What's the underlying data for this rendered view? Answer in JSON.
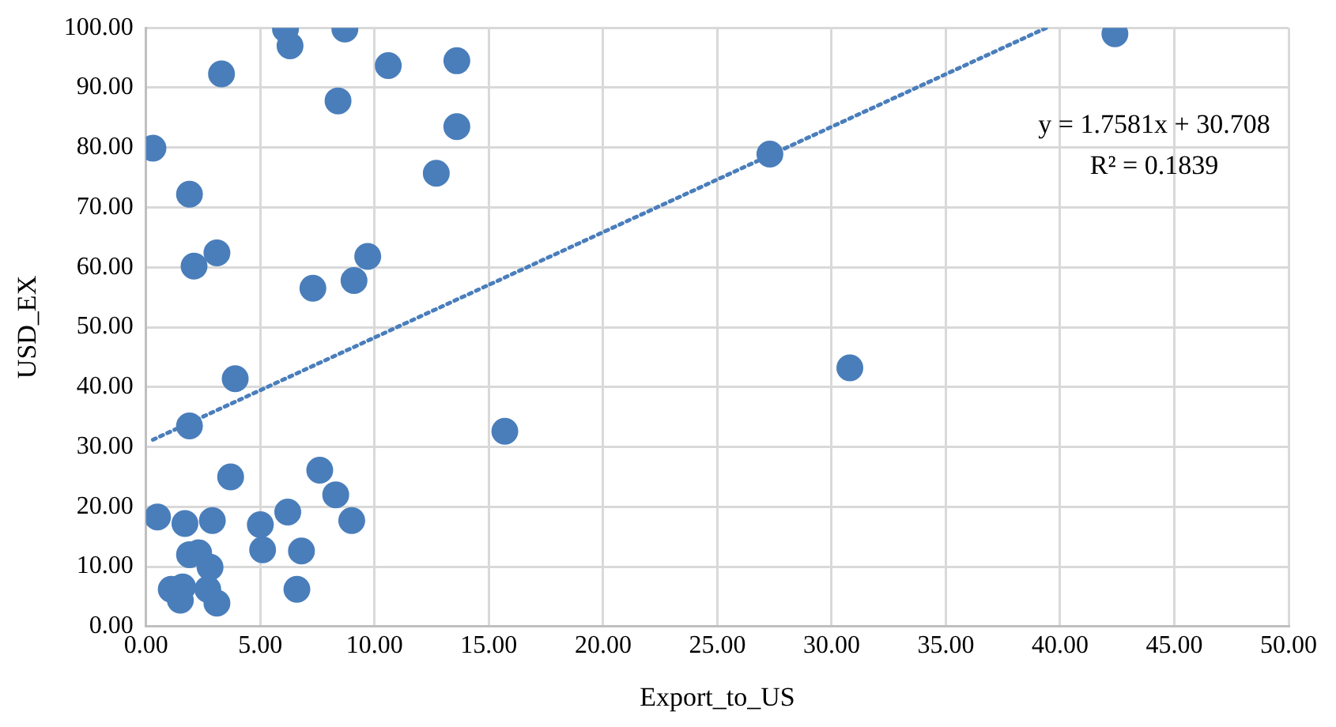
{
  "chart_data": {
    "type": "scatter",
    "xlabel": "Export_to_US",
    "ylabel": "USD_EX",
    "xlim": [
      0,
      50
    ],
    "ylim": [
      0,
      100
    ],
    "xticks": [
      {
        "value": 0,
        "label": "0.00"
      },
      {
        "value": 5,
        "label": "5.00"
      },
      {
        "value": 10,
        "label": "10.00"
      },
      {
        "value": 15,
        "label": "15.00"
      },
      {
        "value": 20,
        "label": "20.00"
      },
      {
        "value": 25,
        "label": "25.00"
      },
      {
        "value": 30,
        "label": "30.00"
      },
      {
        "value": 35,
        "label": "35.00"
      },
      {
        "value": 40,
        "label": "40.00"
      },
      {
        "value": 45,
        "label": "45.00"
      },
      {
        "value": 50,
        "label": "50.00"
      }
    ],
    "yticks": [
      {
        "value": 0,
        "label": "0.00"
      },
      {
        "value": 10,
        "label": "10.00"
      },
      {
        "value": 20,
        "label": "20.00"
      },
      {
        "value": 30,
        "label": "30.00"
      },
      {
        "value": 40,
        "label": "40.00"
      },
      {
        "value": 50,
        "label": "50.00"
      },
      {
        "value": 60,
        "label": "60.00"
      },
      {
        "value": 70,
        "label": "70.00"
      },
      {
        "value": 80,
        "label": "80.00"
      },
      {
        "value": 90,
        "label": "90.00"
      },
      {
        "value": 100,
        "label": "100.00"
      }
    ],
    "grid": true,
    "legend": false,
    "annotations": [
      "y = 1.7581x + 30.708",
      "R² = 0.1839"
    ],
    "series": [
      {
        "type": "scatter",
        "color": "#4a7ebb",
        "marker": "circle",
        "x": [
          6.1,
          6.3,
          8.7,
          3.3,
          10.6,
          13.6,
          8.4,
          13.6,
          0.3,
          12.7,
          1.9,
          3.1,
          2.1,
          9.7,
          9.1,
          7.3,
          3.9,
          1.9,
          3.7,
          7.6,
          8.3,
          6.2,
          0.5,
          1.7,
          2.9,
          5.0,
          9.0,
          5.1,
          6.8,
          1.9,
          2.3,
          2.8,
          1.1,
          1.6,
          1.5,
          2.7,
          3.1,
          6.6,
          15.7,
          30.8,
          27.3,
          42.4
        ],
        "values": [
          99.8,
          97.0,
          99.8,
          92.3,
          93.7,
          94.5,
          87.8,
          83.5,
          79.9,
          75.7,
          72.2,
          62.4,
          60.2,
          61.8,
          57.8,
          56.5,
          41.4,
          33.5,
          25.0,
          26.1,
          22.0,
          19.1,
          18.3,
          17.2,
          17.7,
          17.0,
          17.7,
          12.8,
          12.6,
          12.0,
          12.3,
          9.9,
          6.2,
          6.6,
          4.4,
          6.2,
          3.9,
          6.2,
          32.6,
          43.2,
          78.9,
          99.0
        ]
      },
      {
        "type": "line",
        "color": "#4a7ebb",
        "marker": "none",
        "line_style": "dotted",
        "x": [
          0.3,
          39.4
        ],
        "values": [
          31.2,
          100.0
        ]
      }
    ]
  }
}
